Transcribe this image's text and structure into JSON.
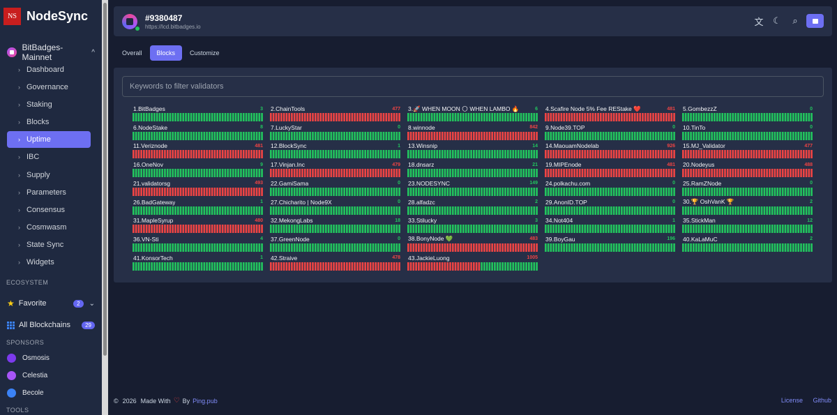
{
  "brand": {
    "logo_text": "NS",
    "name": "NodeSync"
  },
  "chain": {
    "name": "BitBadges-Mainnet",
    "chev": "^"
  },
  "nav": [
    {
      "label": "Dashboard",
      "active": false
    },
    {
      "label": "Governance",
      "active": false
    },
    {
      "label": "Staking",
      "active": false
    },
    {
      "label": "Blocks",
      "active": false
    },
    {
      "label": "Uptime",
      "active": true
    },
    {
      "label": "IBC",
      "active": false
    },
    {
      "label": "Supply",
      "active": false
    },
    {
      "label": "Parameters",
      "active": false
    },
    {
      "label": "Consensus",
      "active": false
    },
    {
      "label": "Cosmwasm",
      "active": false
    },
    {
      "label": "State Sync",
      "active": false
    },
    {
      "label": "Widgets",
      "active": false
    }
  ],
  "sections": {
    "ecosystem": "ECOSYSTEM",
    "sponsors": "SPONSORS",
    "tools": "TOOLS"
  },
  "favorite": {
    "label": "Favorite",
    "count": "2"
  },
  "all_chains": {
    "label": "All Blockchains",
    "count": "29"
  },
  "sponsors": [
    {
      "label": "Osmosis",
      "color": "#7c3aed"
    },
    {
      "label": "Celestia",
      "color": "#a855f7"
    },
    {
      "label": "Becole",
      "color": "#3b82f6"
    }
  ],
  "header": {
    "title": "#9380487",
    "url": "https://lcd.bitbadges.io"
  },
  "tabs": [
    {
      "label": "Overall",
      "active": false
    },
    {
      "label": "Blocks",
      "active": true
    },
    {
      "label": "Customize",
      "active": false
    }
  ],
  "filter": {
    "placeholder": "Keywords to filter validators"
  },
  "validators": [
    {
      "name": "1.BitBadges",
      "missed": "3",
      "status": "green"
    },
    {
      "name": "2.ChainTools",
      "missed": "477",
      "status": "red"
    },
    {
      "name": "3.🚀 WHEN MOON 🌕 WHEN LAMBO 🔥",
      "missed": "6",
      "status": "green"
    },
    {
      "name": "4.Scafire Node 5% Fee REStake ❤️",
      "missed": "481",
      "status": "red"
    },
    {
      "name": "5.GombezzZ",
      "missed": "0",
      "status": "green"
    },
    {
      "name": "6.NodeStake",
      "missed": "8",
      "status": "green"
    },
    {
      "name": "7.LuckyStar",
      "missed": "0",
      "status": "green"
    },
    {
      "name": "8.winnode",
      "missed": "842",
      "status": "red"
    },
    {
      "name": "9.Node39.TOP",
      "missed": "0",
      "status": "green"
    },
    {
      "name": "10.TinTo",
      "missed": "0",
      "status": "green"
    },
    {
      "name": "11.Veriznode",
      "missed": "481",
      "status": "red"
    },
    {
      "name": "12.BlockSync",
      "missed": "1",
      "status": "green"
    },
    {
      "name": "13.Winsnip",
      "missed": "14",
      "status": "green"
    },
    {
      "name": "14.MaouamNodelab",
      "missed": "926",
      "status": "red"
    },
    {
      "name": "15.MJ_Validator",
      "missed": "477",
      "status": "red"
    },
    {
      "name": "16.OneNov",
      "missed": "9",
      "status": "green"
    },
    {
      "name": "17.Vinjan.Inc",
      "missed": "479",
      "status": "red"
    },
    {
      "name": "18.dnsarz",
      "missed": "21",
      "status": "green"
    },
    {
      "name": "19.MIPEnode",
      "missed": "481",
      "status": "red"
    },
    {
      "name": "20.Nodeyus",
      "missed": "488",
      "status": "red"
    },
    {
      "name": "21.validatorsg",
      "missed": "493",
      "status": "red"
    },
    {
      "name": "22.GamiSama",
      "missed": "0",
      "status": "green"
    },
    {
      "name": "23.NODESYNC",
      "missed": "149",
      "status": "green"
    },
    {
      "name": "24.polkachu.com",
      "missed": "0",
      "status": "green"
    },
    {
      "name": "25.RamZNode",
      "missed": "0",
      "status": "green"
    },
    {
      "name": "26.BadGateway",
      "missed": "1",
      "status": "green"
    },
    {
      "name": "27.Chicharito | Node9X",
      "missed": "0",
      "status": "green"
    },
    {
      "name": "28.alfadzc",
      "missed": "2",
      "status": "green"
    },
    {
      "name": "29.AnonID.TOP",
      "missed": "0",
      "status": "green"
    },
    {
      "name": "30.🏆 OshVanK 🏆",
      "missed": "2",
      "status": "green"
    },
    {
      "name": "31.MapleSyrup",
      "missed": "480",
      "status": "red"
    },
    {
      "name": "32.MekongLabs",
      "missed": "18",
      "status": "green"
    },
    {
      "name": "33.Stilucky",
      "missed": "3",
      "status": "green"
    },
    {
      "name": "34.Not404",
      "missed": "1",
      "status": "green"
    },
    {
      "name": "35.StickMan",
      "missed": "12",
      "status": "green"
    },
    {
      "name": "36.VN-Sti",
      "missed": "4",
      "status": "green"
    },
    {
      "name": "37.GreenNode",
      "missed": "0",
      "status": "green"
    },
    {
      "name": "38.BonyNode 💚",
      "missed": "483",
      "status": "red"
    },
    {
      "name": "39.BoyGau",
      "missed": "196",
      "status": "green"
    },
    {
      "name": "40.KaLaMuC",
      "missed": "2",
      "status": "green"
    },
    {
      "name": "41.KonsorTech",
      "missed": "1",
      "status": "green"
    },
    {
      "name": "42.Straive",
      "missed": "478",
      "status": "red"
    },
    {
      "name": "43.JackieLuong",
      "missed": "1005",
      "status": "mixed"
    }
  ],
  "footer": {
    "copy": "©",
    "year": "2026",
    "made_with": "Made With",
    "by": "By",
    "link": "Ping.pub",
    "license": "License",
    "github": "Github"
  },
  "colors": {
    "green": "#22c55e",
    "red": "#ef4444",
    "accent": "#6d6ff2"
  }
}
